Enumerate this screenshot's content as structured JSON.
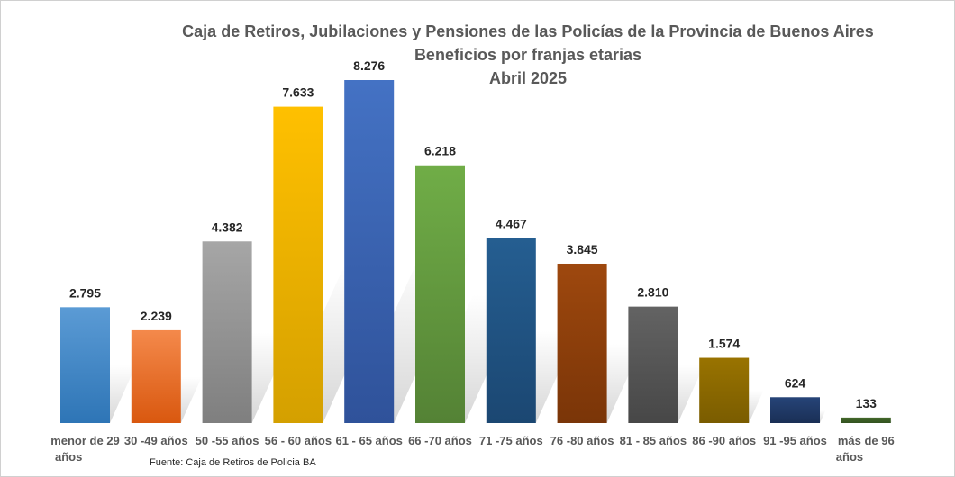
{
  "chart_data": {
    "type": "bar",
    "title": [
      "Caja de Retiros, Jubilaciones  y Pensiones de las Policías de la Provincia de Buenos Aires",
      "Beneficios por franjas etarias",
      "Abril 2025"
    ],
    "categories": [
      [
        "menor de 29",
        "años"
      ],
      [
        "30 -49 años"
      ],
      [
        "50 -55 años"
      ],
      [
        "56 - 60 años"
      ],
      [
        "61 - 65 años"
      ],
      [
        "66 -70 años"
      ],
      [
        "71 -75 años"
      ],
      [
        "76 -80 años"
      ],
      [
        "81 - 85 años"
      ],
      [
        "86 -90 años"
      ],
      [
        "91 -95 años"
      ],
      [
        "más de 96",
        "años"
      ]
    ],
    "values": [
      2795,
      2239,
      4382,
      7633,
      8276,
      6218,
      4467,
      3845,
      2810,
      1574,
      624,
      133
    ],
    "value_labels": [
      "2.795",
      "2.239",
      "4.382",
      "7.633",
      "8.276",
      "6.218",
      "4.467",
      "3.845",
      "2.810",
      "1.574",
      "624",
      "133"
    ],
    "colors": [
      [
        "#5B9BD5",
        "#2E75B6"
      ],
      [
        "#F4894B",
        "#D9580F"
      ],
      [
        "#A6A6A6",
        "#7F7F7F"
      ],
      [
        "#FFC000",
        "#D4A000"
      ],
      [
        "#4472C4",
        "#2F529A"
      ],
      [
        "#70AD47",
        "#548235"
      ],
      [
        "#255E91",
        "#1B4772"
      ],
      [
        "#9E480E",
        "#7A3508"
      ],
      [
        "#636363",
        "#474747"
      ],
      [
        "#997300",
        "#7A5C00"
      ],
      [
        "#264478",
        "#1A2F55"
      ],
      [
        "#43682B",
        "#335220"
      ]
    ],
    "ylim": [
      0,
      8276
    ],
    "grid": false,
    "legend": "none",
    "source": "Fuente: Caja de Retiros de Policia BA"
  }
}
